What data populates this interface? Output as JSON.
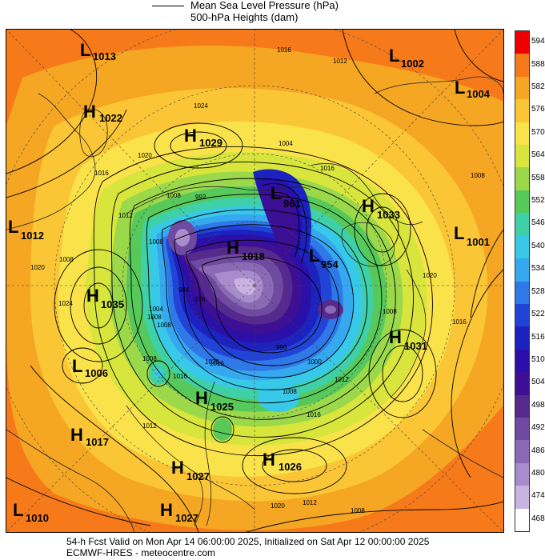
{
  "legend": {
    "line_label": "Mean Sea Level Pressure (hPa)",
    "fill_label": "500-hPa Heights (dam)"
  },
  "colorbar": {
    "levels": [
      "594",
      "588",
      "582",
      "576",
      "570",
      "564",
      "558",
      "552",
      "546",
      "540",
      "534",
      "528",
      "522",
      "516",
      "510",
      "504",
      "498",
      "492",
      "486",
      "480",
      "474",
      "468"
    ],
    "colors": [
      "#ee0000",
      "#f77a1a",
      "#f5a623",
      "#fbc635",
      "#f9e24a",
      "#d8e53c",
      "#9bd84a",
      "#56c95a",
      "#3fd0a8",
      "#38c9e8",
      "#35a8f0",
      "#2f78e8",
      "#2244d6",
      "#1b22c0",
      "#2a10a8",
      "#3d0f94",
      "#552a8c",
      "#6e4aa0",
      "#8a6ab4",
      "#a98ccb",
      "#c9b3e0",
      "#ffffff"
    ]
  },
  "pressure_centers": [
    {
      "type": "L",
      "value": "1013"
    },
    {
      "type": "H",
      "value": "1022"
    },
    {
      "type": "H",
      "value": "1029"
    },
    {
      "type": "L",
      "value": "1002"
    },
    {
      "type": "L",
      "value": "1004"
    },
    {
      "type": "L",
      "value": "961"
    },
    {
      "type": "H",
      "value": "1033"
    },
    {
      "type": "L",
      "value": "1001"
    },
    {
      "type": "L",
      "value": "1012"
    },
    {
      "type": "H",
      "value": "1018"
    },
    {
      "type": "L",
      "value": "954"
    },
    {
      "type": "H",
      "value": "1035"
    },
    {
      "type": "H",
      "value": "1031"
    },
    {
      "type": "L",
      "value": "1006"
    },
    {
      "type": "H",
      "value": "1025"
    },
    {
      "type": "H",
      "value": "1017"
    },
    {
      "type": "H",
      "value": "1026"
    },
    {
      "type": "H",
      "value": "1027"
    },
    {
      "type": "L",
      "value": "1010"
    },
    {
      "type": "H",
      "value": "1027"
    }
  ],
  "contour_labels": [
    "1016",
    "1012",
    "1024",
    "1020",
    "1016",
    "1004",
    "1016",
    "1008",
    "1008",
    "992",
    "1012",
    "1020",
    "1024",
    "1008",
    "1020",
    "1016",
    "1008",
    "984",
    "976",
    "1008",
    "1004",
    "1008",
    "1008",
    "996",
    "1000",
    "1012",
    "1016",
    "1008",
    "1016",
    "1008",
    "1020",
    "1016",
    "1012",
    "1020",
    "1012",
    "1008"
  ],
  "footer": {
    "line1": "54-h Fcst Valid on Mon Apr 14 06:00:00 2025, Initialized on Sat Apr 12 00:00:00 2025",
    "line2": "ECMWF-HRES  - meteocentre.com"
  }
}
